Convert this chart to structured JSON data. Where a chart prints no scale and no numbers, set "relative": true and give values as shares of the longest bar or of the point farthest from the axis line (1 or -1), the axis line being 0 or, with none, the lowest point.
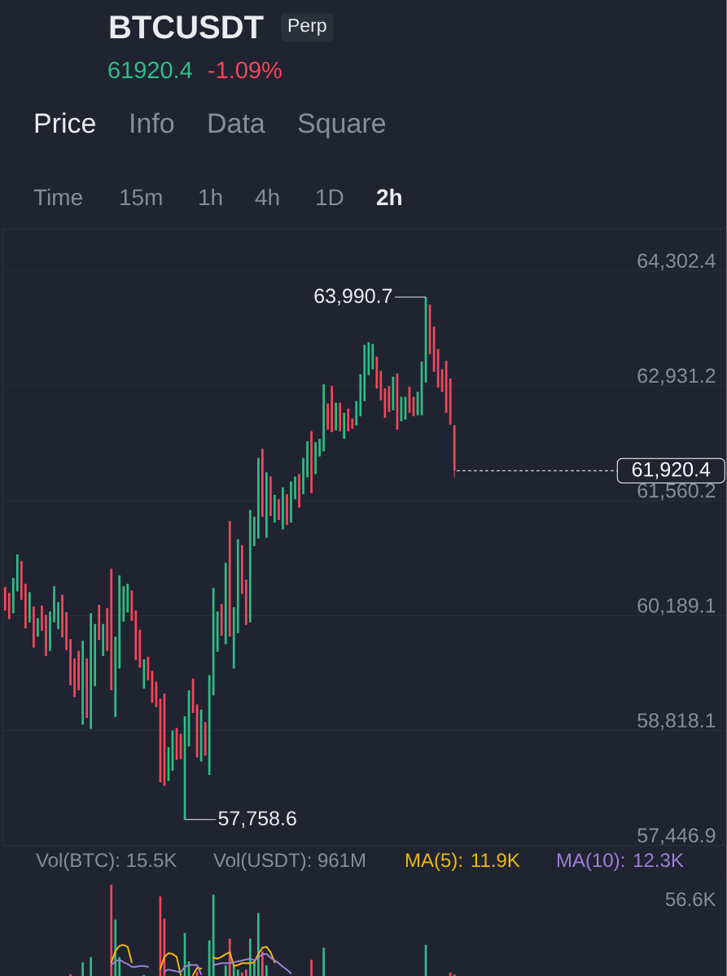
{
  "chart_data": [
    {
      "type": "candlestick",
      "title": "BTCUSDT",
      "categories": [
        null,
        null,
        null,
        null,
        null,
        null,
        null,
        null,
        null,
        null,
        null,
        null,
        null,
        null,
        null,
        null,
        null,
        null,
        null,
        null,
        null,
        null,
        null,
        null,
        null,
        null,
        null,
        null,
        null,
        null,
        null,
        null,
        null,
        null,
        null,
        null,
        null,
        null,
        null,
        null,
        null,
        null,
        null,
        null,
        null,
        null,
        null,
        null,
        null,
        null,
        null,
        null,
        null,
        null,
        null,
        null,
        null,
        null,
        null,
        null,
        null,
        null,
        null,
        null,
        null,
        null,
        null,
        null,
        null,
        null,
        null,
        null,
        null,
        null,
        null,
        null,
        null,
        null,
        null,
        null,
        null,
        null,
        null,
        null,
        null,
        null,
        null,
        null,
        null,
        null,
        null,
        null,
        null,
        null,
        null,
        null,
        null,
        null,
        null,
        null,
        null,
        null,
        null,
        null,
        null,
        null,
        null,
        null,
        null,
        null,
        null,
        null,
        null,
        null,
        null,
        null,
        null,
        null,
        null,
        null,
        null,
        null,
        null,
        null,
        null,
        null,
        null,
        null,
        null,
        null,
        null,
        null,
        null,
        null,
        null,
        null,
        null,
        null,
        null,
        null,
        null,
        null,
        null,
        null,
        null,
        null,
        null,
        null,
        null,
        null,
        null,
        null,
        null,
        null,
        null,
        null,
        null,
        null,
        null,
        null,
        null,
        null,
        null,
        null,
        null,
        null,
        null,
        null,
        null,
        null,
        null,
        null,
        null,
        null,
        null,
        null,
        null
      ],
      "ohlc": [
        [
          60530,
          60530,
          60250,
          60250
        ],
        [
          60460,
          60460,
          60150,
          60150
        ],
        [
          60220,
          60640,
          60220,
          60640
        ],
        [
          60480,
          60920,
          60480,
          60920
        ],
        [
          60840,
          60840,
          60380,
          60380
        ],
        [
          60570,
          60570,
          60040,
          60040
        ],
        [
          60110,
          60470,
          60110,
          60470
        ],
        [
          60300,
          60300,
          59810,
          59810
        ],
        [
          59940,
          60160,
          59940,
          60160
        ],
        [
          60310,
          60310,
          60010,
          60010
        ],
        [
          60200,
          60200,
          59710,
          59710
        ],
        [
          59770,
          60240,
          59770,
          60240
        ],
        [
          60110,
          60540,
          60110,
          60540
        ],
        [
          60030,
          60350,
          60030,
          60350
        ],
        [
          60440,
          60440,
          59930,
          59930
        ],
        [
          60230,
          60230,
          59780,
          59780
        ],
        [
          59910,
          59910,
          59360,
          59360
        ],
        [
          59680,
          59680,
          59220,
          59220
        ],
        [
          59770,
          59770,
          59300,
          59300
        ],
        [
          58890,
          59890,
          58890,
          59890
        ],
        [
          59680,
          59680,
          58970,
          58970
        ],
        [
          58840,
          60220,
          58840,
          60220
        ],
        [
          59350,
          60090,
          59350,
          60090
        ],
        [
          60320,
          60320,
          59900,
          59900
        ],
        [
          59710,
          60090,
          59710,
          60090
        ],
        [
          60280,
          60280,
          59770,
          59770
        ],
        [
          60750,
          60750,
          59300,
          59300
        ],
        [
          58980,
          59940,
          58980,
          59940
        ],
        [
          59560,
          60670,
          59560,
          60670
        ],
        [
          60120,
          60540,
          60120,
          60540
        ],
        [
          60230,
          60570,
          60230,
          60570
        ],
        [
          60490,
          60490,
          60130,
          60130
        ],
        [
          60250,
          60250,
          59660,
          59660
        ],
        [
          60020,
          60020,
          59570,
          59570
        ],
        [
          59320,
          59670,
          59320,
          59670
        ],
        [
          59700,
          59700,
          59420,
          59420
        ],
        [
          59530,
          59530,
          59150,
          59150
        ],
        [
          59400,
          59400,
          59100,
          59100
        ],
        [
          59200,
          59200,
          58200,
          58200
        ],
        [
          59260,
          59260,
          58160,
          58160
        ],
        [
          58220,
          58620,
          58220,
          58620
        ],
        [
          58340,
          58820,
          58340,
          58820
        ],
        [
          58850,
          58850,
          58470,
          58470
        ],
        [
          58780,
          58780,
          58480,
          58480
        ],
        [
          57758.6,
          58990,
          57758.6,
          58990
        ],
        [
          58630,
          59300,
          58630,
          59300
        ],
        [
          59440,
          59440,
          59030,
          59030
        ],
        [
          59130,
          59130,
          58500,
          58500
        ],
        [
          58450,
          59070,
          58450,
          59070
        ],
        [
          58920,
          58920,
          58520,
          58520
        ],
        [
          58290,
          59480,
          58290,
          59480
        ],
        [
          59240,
          60520,
          59240,
          60520
        ],
        [
          59760,
          60240,
          59760,
          60240
        ],
        [
          60330,
          60330,
          59950,
          59950
        ],
        [
          59850,
          60820,
          59850,
          60820
        ],
        [
          61320,
          61320,
          59940,
          59940
        ],
        [
          59560,
          60290,
          59560,
          60290
        ],
        [
          59980,
          61100,
          59980,
          61100
        ],
        [
          61030,
          61030,
          60450,
          60450
        ],
        [
          60620,
          60620,
          60080,
          60080
        ],
        [
          60110,
          61450,
          60110,
          61450
        ],
        [
          61020,
          61370,
          61020,
          61370
        ],
        [
          61110,
          62070,
          61110,
          62070
        ],
        [
          62180,
          62180,
          61370,
          61370
        ],
        [
          61120,
          61900,
          61120,
          61900
        ],
        [
          61850,
          61850,
          61380,
          61380
        ],
        [
          61300,
          61630,
          61300,
          61630
        ],
        [
          61580,
          61580,
          61330,
          61330
        ],
        [
          61220,
          61720,
          61220,
          61720
        ],
        [
          61640,
          61640,
          61270,
          61270
        ],
        [
          61300,
          61790,
          61300,
          61790
        ],
        [
          61580,
          61850,
          61580,
          61850
        ],
        [
          61880,
          61880,
          61480,
          61480
        ],
        [
          61640,
          62070,
          61640,
          62070
        ],
        [
          61840,
          62270,
          61840,
          62270
        ],
        [
          62390,
          62390,
          61650,
          61650
        ],
        [
          61880,
          62260,
          61880,
          62260
        ],
        [
          62090,
          62300,
          62090,
          62300
        ],
        [
          62150,
          62950,
          62150,
          62950
        ],
        [
          62720,
          62720,
          62410,
          62410
        ],
        [
          62930,
          62930,
          62380,
          62380
        ],
        [
          62400,
          62730,
          62400,
          62730
        ],
        [
          62730,
          62730,
          62390,
          62390
        ],
        [
          62300,
          62610,
          62300,
          62610
        ],
        [
          62660,
          62660,
          62390,
          62390
        ],
        [
          62540,
          62540,
          62420,
          62420
        ],
        [
          62460,
          62750,
          62460,
          62750
        ],
        [
          62570,
          63070,
          62570,
          63070
        ],
        [
          62750,
          63420,
          62750,
          63420
        ],
        [
          63060,
          63450,
          63060,
          63450
        ],
        [
          63130,
          63430,
          63130,
          63430
        ],
        [
          63280,
          63280,
          62900,
          62900
        ],
        [
          63110,
          63110,
          62760,
          62760
        ],
        [
          62900,
          62900,
          62550,
          62550
        ],
        [
          62930,
          62930,
          62620,
          62620
        ],
        [
          62640,
          63040,
          62640,
          63040
        ],
        [
          63080,
          63080,
          62410,
          62410
        ],
        [
          62510,
          62800,
          62510,
          62800
        ],
        [
          62530,
          62800,
          62530,
          62800
        ],
        [
          62920,
          62920,
          62610,
          62610
        ],
        [
          62800,
          62800,
          62570,
          62570
        ],
        [
          62580,
          62860,
          62580,
          62860
        ],
        [
          62580,
          63220,
          62580,
          63220
        ],
        [
          62970,
          63990.7,
          62970,
          63990.7
        ],
        [
          63900,
          63900,
          63310,
          63310
        ],
        [
          63640,
          63640,
          63100,
          63100
        ],
        [
          63370,
          63370,
          62910,
          62910
        ],
        [
          63130,
          63130,
          62860,
          62860
        ],
        [
          63230,
          63230,
          62610,
          62610
        ],
        [
          63020,
          63020,
          62470,
          62470
        ],
        [
          62460,
          62460,
          61840,
          61920.4
        ],
        null,
        null,
        null,
        null,
        null,
        null,
        null,
        null,
        null,
        null,
        null,
        null,
        null,
        null,
        null,
        null,
        null,
        null,
        null,
        null,
        null,
        null,
        null,
        null,
        null,
        null,
        null,
        null,
        null,
        null,
        null,
        null,
        null,
        null,
        null,
        null,
        null,
        null,
        null,
        null,
        null,
        null,
        null,
        null,
        null,
        null,
        null,
        null,
        null,
        null,
        null,
        null,
        null,
        null,
        null,
        null,
        null,
        null,
        null,
        null,
        null,
        null,
        null,
        null,
        null,
        null
      ],
      "colors": [
        "#f6465d",
        "#f6465d",
        "#2ebd85",
        "#2ebd85",
        "#f6465d",
        "#f6465d",
        "#2ebd85",
        "#f6465d",
        "#2ebd85",
        "#f6465d",
        "#f6465d",
        "#2ebd85",
        "#2ebd85",
        "#2ebd85",
        "#f6465d",
        "#f6465d",
        "#f6465d",
        "#f6465d",
        "#f6465d",
        "#2ebd85",
        "#f6465d",
        "#2ebd85",
        "#2ebd85",
        "#f6465d",
        "#2ebd85",
        "#f6465d",
        "#f6465d",
        "#2ebd85",
        "#2ebd85",
        "#2ebd85",
        "#2ebd85",
        "#f6465d",
        "#f6465d",
        "#f6465d",
        "#2ebd85",
        "#f6465d",
        "#f6465d",
        "#f6465d",
        "#f6465d",
        "#f6465d",
        "#2ebd85",
        "#2ebd85",
        "#f6465d",
        "#f6465d",
        "#2ebd85",
        "#2ebd85",
        "#f6465d",
        "#f6465d",
        "#2ebd85",
        "#f6465d",
        "#2ebd85",
        "#2ebd85",
        "#2ebd85",
        "#f6465d",
        "#2ebd85",
        "#f6465d",
        "#2ebd85",
        "#2ebd85",
        "#f6465d",
        "#f6465d",
        "#2ebd85",
        "#2ebd85",
        "#2ebd85",
        "#f6465d",
        "#2ebd85",
        "#f6465d",
        "#2ebd85",
        "#f6465d",
        "#2ebd85",
        "#f6465d",
        "#2ebd85",
        "#2ebd85",
        "#f6465d",
        "#2ebd85",
        "#2ebd85",
        "#f6465d",
        "#2ebd85",
        "#2ebd85",
        "#2ebd85",
        "#f6465d",
        "#f6465d",
        "#2ebd85",
        "#f6465d",
        "#2ebd85",
        "#f6465d",
        "#f6465d",
        "#2ebd85",
        "#2ebd85",
        "#2ebd85",
        "#2ebd85",
        "#2ebd85",
        "#f6465d",
        "#f6465d",
        "#f6465d",
        "#f6465d",
        "#2ebd85",
        "#f6465d",
        "#2ebd85",
        "#2ebd85",
        "#f6465d",
        "#f6465d",
        "#2ebd85",
        "#2ebd85",
        "#2ebd85",
        "#f6465d",
        "#f6465d",
        "#f6465d",
        "#f6465d",
        "#f6465d",
        "#f6465d",
        "#f6465d",
        null,
        null,
        null,
        null,
        null,
        null,
        null,
        null,
        null,
        null,
        null,
        null,
        null,
        null,
        null,
        null,
        null,
        null,
        null,
        null,
        null,
        null,
        null,
        null,
        null,
        null,
        null,
        null,
        null,
        null,
        null,
        null,
        null,
        null,
        null,
        null,
        null,
        null,
        null,
        null,
        null,
        null,
        null,
        null,
        null,
        null,
        null,
        null,
        null,
        null,
        null,
        null,
        null,
        null,
        null,
        null,
        null,
        null,
        null,
        null,
        null,
        null,
        null,
        null,
        null,
        null
      ],
      "ylim": [
        57446.9,
        64800
      ],
      "yticks": [
        {
          "value": 57446.9,
          "label": "57,446.9"
        },
        {
          "value": 58818.1,
          "label": "58,818.1"
        },
        {
          "value": 60189.1,
          "label": "60,189.1"
        },
        {
          "value": 61560.2,
          "label": "61,560.2"
        },
        {
          "value": 62931.2,
          "label": "62,931.2"
        },
        {
          "value": 64302.4,
          "label": "64,302.4"
        }
      ],
      "tick_labels": "y",
      "grid": "y",
      "ref_lines": [
        {
          "axis": "y",
          "value": 61920.4,
          "label": "61,920.4",
          "color": "#ffffff",
          "line_style": "dashed"
        }
      ],
      "annotations": [
        "Perp",
        "61920.4",
        "-1.09%",
        "Price",
        "Info",
        "Data",
        "Square",
        "Time",
        "15m",
        "1h",
        "4h",
        "1D",
        "2h",
        "63,990.7",
        "57,758.6"
      ]
    },
    {
      "type": "bar",
      "relative": true,
      "categories": [
        null,
        null,
        null,
        null,
        null,
        null,
        null,
        null,
        null,
        null,
        null,
        null,
        null,
        null,
        null,
        null,
        null,
        null,
        null,
        null,
        null,
        null,
        null,
        null,
        null,
        null,
        null,
        null,
        null,
        null,
        null,
        null,
        null,
        null,
        null,
        null,
        null,
        null,
        null,
        null,
        null,
        null,
        null,
        null,
        null,
        null,
        null,
        null,
        null,
        null,
        null,
        null,
        null,
        null,
        null,
        null,
        null,
        null,
        null,
        null,
        null,
        null,
        null,
        null,
        null,
        null,
        null,
        null,
        null,
        null,
        null,
        null,
        null,
        null,
        null,
        null,
        null,
        null,
        null,
        null,
        null,
        null,
        null,
        null,
        null,
        null,
        null,
        null,
        null,
        null,
        null,
        null,
        null,
        null,
        null,
        null,
        null,
        null,
        null,
        null,
        null,
        null,
        null,
        null,
        null,
        null,
        null,
        null,
        null,
        null,
        null,
        null,
        null,
        null,
        null,
        null,
        null,
        null,
        null,
        null,
        null,
        null,
        null,
        null,
        null,
        null,
        null,
        null,
        null,
        null,
        null,
        null,
        null,
        null,
        null,
        null,
        null,
        null,
        null,
        null,
        null,
        null,
        null,
        null,
        null,
        null,
        null,
        null,
        null,
        null,
        null,
        null,
        null,
        null,
        null,
        null,
        null,
        null,
        null,
        null,
        null,
        null,
        null,
        null,
        null,
        null,
        null,
        null,
        null,
        null,
        null,
        null,
        null,
        null,
        null,
        null,
        null
      ],
      "series": [
        {
          "type": "bar",
          "values": [
            null,
            null,
            null,
            null,
            null,
            null,
            null,
            null,
            null,
            null,
            null,
            null,
            null,
            null,
            null,
            null,
            0.02,
            null,
            null,
            0.15,
            null,
            0.21,
            null,
            null,
            null,
            null,
            1,
            0.62,
            0.21,
            null,
            null,
            null,
            null,
            null,
            0.01,
            null,
            null,
            null,
            0.87,
            0.63,
            null,
            null,
            null,
            null,
            0.47,
            0.16,
            null,
            0.05,
            null,
            null,
            0.39,
            0.89,
            null,
            null,
            0.12,
            0.41,
            0.12,
            0.07,
            0.04,
            0.07,
            0.41,
            0.15,
            0.69,
            0.27,
            0.12,
            null,
            null,
            null,
            null,
            null,
            null,
            null,
            null,
            null,
            null,
            0.18,
            null,
            null,
            0.31,
            null,
            null,
            null,
            null,
            null,
            null,
            null,
            null,
            null,
            null,
            null,
            null,
            null,
            null,
            null,
            null,
            null,
            null,
            null,
            null,
            null,
            null,
            null,
            null,
            0.34,
            null,
            null,
            null,
            null,
            null,
            0.04,
            0.02,
            null,
            null,
            null,
            null,
            null,
            null,
            null,
            null,
            null,
            null,
            null,
            null,
            null,
            null,
            null,
            null,
            null,
            null,
            null,
            null,
            null,
            null,
            null,
            null,
            null,
            null,
            null,
            null,
            null,
            null,
            null,
            null,
            null,
            null,
            null,
            null,
            null,
            null,
            null,
            null,
            null,
            null,
            null,
            null,
            null,
            null,
            null,
            null,
            null,
            null,
            null,
            null,
            null,
            null,
            null,
            null,
            null,
            null,
            null,
            null,
            null,
            null,
            null,
            null,
            null,
            null
          ],
          "colors": [
            null,
            null,
            null,
            null,
            null,
            null,
            null,
            null,
            null,
            null,
            null,
            null,
            null,
            null,
            null,
            null,
            "#f6465d",
            null,
            null,
            "#2ebd85",
            null,
            "#2ebd85",
            null,
            null,
            null,
            null,
            "#f6465d",
            "#2ebd85",
            "#2ebd85",
            null,
            null,
            null,
            null,
            null,
            "#2ebd85",
            null,
            null,
            null,
            "#f6465d",
            "#f6465d",
            null,
            null,
            null,
            null,
            "#2ebd85",
            "#2ebd85",
            null,
            "#f6465d",
            null,
            null,
            "#2ebd85",
            "#2ebd85",
            null,
            null,
            "#2ebd85",
            "#f6465d",
            "#2ebd85",
            "#2ebd85",
            "#f6465d",
            "#f6465d",
            "#2ebd85",
            "#2ebd85",
            "#2ebd85",
            "#f6465d",
            "#2ebd85",
            null,
            null,
            null,
            null,
            null,
            null,
            null,
            null,
            null,
            null,
            "#f6465d",
            null,
            null,
            "#2ebd85",
            null,
            null,
            null,
            null,
            null,
            null,
            null,
            null,
            null,
            null,
            null,
            null,
            null,
            null,
            null,
            null,
            null,
            null,
            null,
            null,
            null,
            null,
            null,
            null,
            "#2ebd85",
            null,
            null,
            null,
            null,
            null,
            "#f6465d",
            "#f6465d",
            null,
            null,
            null,
            null,
            null,
            null,
            null,
            null,
            null,
            null,
            null,
            null,
            null,
            null,
            null,
            null,
            null,
            null,
            null,
            null,
            null,
            null,
            null,
            null,
            null,
            null,
            null,
            null,
            null,
            null,
            null,
            null,
            null,
            null,
            null,
            null,
            null,
            null,
            null,
            null,
            null,
            null,
            null,
            null,
            null,
            null,
            null,
            null,
            null,
            null,
            null,
            null,
            null,
            null,
            null,
            null,
            null,
            null,
            null,
            null,
            null,
            null,
            null,
            null,
            null,
            null
          ]
        },
        {
          "type": "line",
          "name": "MA(5): 11.9K",
          "color": "#f0b90b",
          "values": [
            null,
            null,
            null,
            null,
            null,
            null,
            null,
            null,
            null,
            null,
            null,
            null,
            null,
            null,
            null,
            null,
            null,
            null,
            null,
            null,
            null,
            null,
            null,
            null,
            null,
            null,
            0.15,
            0.27,
            0.33,
            0.34,
            0.32,
            0.15,
            null,
            null,
            null,
            null,
            null,
            null,
            0.08,
            0.21,
            0.25,
            0.24,
            0.21,
            0.01,
            null,
            null,
            0.01,
            0.09,
            0.08,
            null,
            null,
            0.2,
            0.19,
            0.21,
            0.24,
            0.26,
            0.11,
            0.12,
            0.14,
            0.14,
            0.14,
            0.15,
            0.24,
            0.31,
            0.32,
            0.26,
            0.15,
            null,
            null,
            null,
            null,
            null,
            null,
            null,
            null,
            null,
            null,
            null,
            null,
            null,
            null,
            null,
            null,
            null,
            null,
            null,
            null,
            null,
            null,
            null,
            null,
            null,
            null,
            null,
            null,
            null,
            null,
            null,
            null,
            null,
            null,
            null,
            null,
            null,
            null,
            null,
            null,
            null,
            null,
            null,
            null,
            null,
            null,
            null,
            null,
            null,
            null,
            null,
            null,
            null,
            null,
            null,
            null,
            null,
            null,
            null,
            null,
            null,
            null,
            null,
            null,
            null,
            null,
            null,
            null,
            null,
            null,
            null,
            null,
            null,
            null,
            null,
            null,
            null,
            null,
            null,
            null,
            null,
            null,
            null,
            null,
            null,
            null,
            null,
            null,
            null,
            null,
            null,
            null,
            null,
            null,
            null,
            null,
            null,
            null,
            null,
            null,
            null,
            null,
            null,
            null,
            null,
            null,
            null,
            null,
            null,
            null
          ]
        },
        {
          "type": "line",
          "name": "MA(10): 12.3K",
          "color": "#a07fda",
          "values": [
            null,
            null,
            null,
            null,
            null,
            null,
            null,
            null,
            null,
            null,
            null,
            null,
            null,
            null,
            null,
            null,
            null,
            null,
            null,
            null,
            null,
            null,
            null,
            null,
            null,
            null,
            0.12,
            0.16,
            0.18,
            0.15,
            0.13,
            0.1,
            0.1,
            0.11,
            0.11,
            0.1,
            null,
            null,
            null,
            0.05,
            0.07,
            0.06,
            0.05,
            0.04,
            0.1,
            0.12,
            0.12,
            0.12,
            0.02,
            null,
            null,
            0.12,
            0.13,
            0.14,
            0.14,
            0.14,
            0.15,
            0.16,
            0.17,
            0.18,
            0.19,
            0.17,
            0.2,
            0.24,
            0.24,
            0.2,
            0.17,
            0.14,
            0.1,
            0.07,
            0.03,
            null,
            null,
            null,
            null,
            null,
            null,
            null,
            null,
            null,
            null,
            null,
            null,
            null,
            null,
            null,
            null,
            null,
            null,
            null,
            null,
            null,
            null,
            null,
            null,
            null,
            null,
            null,
            null,
            null,
            null,
            null,
            null,
            null,
            null,
            null,
            null,
            null,
            null,
            null,
            null,
            null,
            null,
            null,
            null,
            null,
            null,
            null,
            null,
            null,
            null,
            null,
            null,
            null,
            null,
            null,
            null,
            null,
            null,
            null,
            null,
            null,
            null,
            null,
            null,
            null,
            null,
            null,
            null,
            null,
            null,
            null,
            null,
            null,
            null,
            null,
            null,
            null,
            null,
            null,
            null,
            null,
            null,
            null,
            null,
            null,
            null,
            null,
            null,
            null,
            null,
            null,
            null,
            null,
            null,
            null,
            null,
            null,
            null,
            null,
            null,
            null,
            null,
            null,
            null,
            null,
            null
          ]
        }
      ],
      "annotations": [
        "Vol(BTC): 15.5K",
        "Vol(USDT): 961M",
        "56.6K"
      ]
    }
  ]
}
